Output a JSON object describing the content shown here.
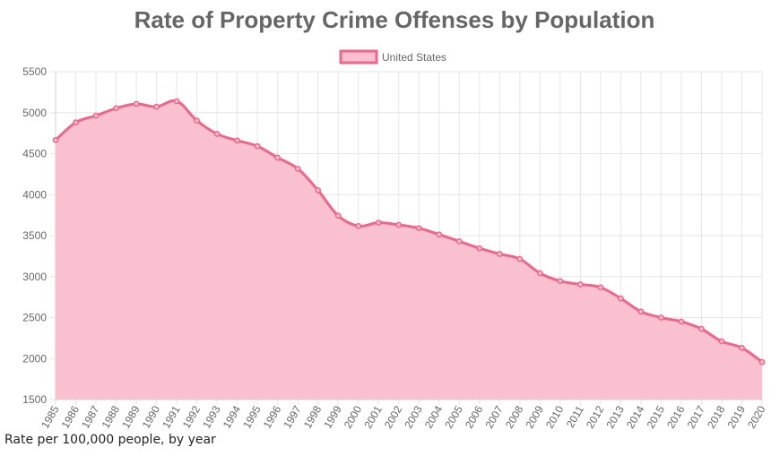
{
  "chart_data": {
    "type": "area",
    "title": "Rate of Property Crime Offenses by Population",
    "legend_position": "top-center",
    "grid": true,
    "x": [
      "1985",
      "1986",
      "1987",
      "1988",
      "1989",
      "1990",
      "1991",
      "1992",
      "1993",
      "1994",
      "1995",
      "1996",
      "1997",
      "1998",
      "1999",
      "2000",
      "2001",
      "2002",
      "2003",
      "2004",
      "2005",
      "2006",
      "2007",
      "2008",
      "2009",
      "2010",
      "2011",
      "2012",
      "2013",
      "2014",
      "2015",
      "2016",
      "2017",
      "2018",
      "2019",
      "2020"
    ],
    "series": [
      {
        "name": "United States",
        "border_color": "#ee6689",
        "fill_color": "#f9c1cf",
        "values": [
          4666,
          4881,
          4963,
          5054,
          5107,
          5073,
          5140,
          4903,
          4741,
          4660,
          4591,
          4451,
          4316,
          4053,
          3743,
          3618,
          3658,
          3631,
          3591,
          3514,
          3431,
          3346,
          3276,
          3215,
          3041,
          2946,
          2905,
          2869,
          2734,
          2574,
          2500,
          2451,
          2362,
          2210,
          2131,
          1958
        ]
      }
    ],
    "ylim": [
      1500,
      5500
    ],
    "y_ticks": [
      "5500",
      "5000",
      "4500",
      "4000",
      "3500",
      "3000",
      "2500",
      "2000",
      "1500"
    ],
    "xlabel": "",
    "ylabel": ""
  },
  "caption": "Rate per 100,000 people, by year"
}
